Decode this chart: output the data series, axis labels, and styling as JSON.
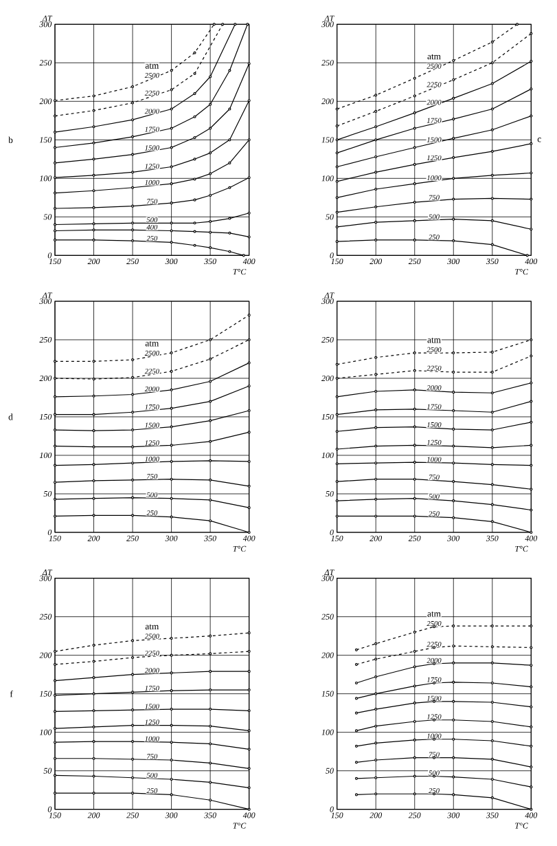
{
  "chart_data": [
    {
      "type": "line",
      "title": "b",
      "legend_title": "atm",
      "xlabel": "T°C",
      "ylabel": "ΔT",
      "xlim": [
        150,
        400
      ],
      "ylim": [
        0,
        300
      ],
      "xticks": [
        150,
        200,
        250,
        300,
        350,
        400
      ],
      "yticks": [
        0,
        50,
        100,
        150,
        200,
        250,
        300
      ],
      "grid": true,
      "marker": "circle",
      "x": [
        150,
        200,
        250,
        300,
        330,
        350,
        375,
        400
      ],
      "series": [
        {
          "name": "2500",
          "color": "#000000",
          "line_style": "dashed",
          "x": [
            150,
            200,
            250,
            300,
            330,
            355
          ],
          "values": [
            201,
            207,
            219,
            240,
            263,
            300
          ]
        },
        {
          "name": "2250",
          "color": "#000000",
          "line_style": "dashed",
          "x": [
            150,
            200,
            250,
            300,
            330,
            366
          ],
          "values": [
            181,
            188,
            198,
            215,
            236,
            300
          ]
        },
        {
          "name": "2000",
          "color": "#000000",
          "line_style": "solid",
          "x": [
            150,
            200,
            250,
            300,
            330,
            350,
            382
          ],
          "values": [
            160,
            167,
            176,
            190,
            210,
            232,
            300
          ]
        },
        {
          "name": "1750",
          "color": "#000000",
          "line_style": "solid",
          "x": [
            150,
            200,
            250,
            300,
            330,
            350,
            375,
            398
          ],
          "values": [
            140,
            146,
            154,
            165,
            180,
            196,
            240,
            300
          ]
        },
        {
          "name": "1500",
          "color": "#000000",
          "line_style": "solid",
          "values": [
            120,
            125,
            131,
            140,
            153,
            165,
            190,
            249
          ]
        },
        {
          "name": "1250",
          "color": "#000000",
          "line_style": "solid",
          "values": [
            101,
            104,
            108,
            115,
            125,
            133,
            150,
            201
          ]
        },
        {
          "name": "1000",
          "color": "#000000",
          "line_style": "solid",
          "values": [
            81,
            84,
            88,
            93,
            99,
            106,
            120,
            150
          ]
        },
        {
          "name": "750",
          "color": "#000000",
          "line_style": "solid",
          "values": [
            61,
            62,
            64,
            68,
            72,
            78,
            88,
            101
          ]
        },
        {
          "name": "500",
          "color": "#000000",
          "line_style": "solid",
          "values": [
            40,
            41,
            42,
            42,
            42,
            44,
            48,
            55
          ]
        },
        {
          "name": "400",
          "color": "#000000",
          "line_style": "solid",
          "values": [
            32,
            33,
            33,
            32,
            31,
            30,
            29,
            24
          ]
        },
        {
          "name": "250",
          "color": "#000000",
          "line_style": "solid",
          "x": [
            150,
            200,
            250,
            300,
            330,
            350,
            375,
            393
          ],
          "values": [
            20,
            20,
            19,
            17,
            13,
            10,
            5,
            0
          ]
        }
      ]
    },
    {
      "type": "line",
      "title": "c",
      "legend_title": "atm",
      "xlabel": "T°C",
      "ylabel": "ΔT",
      "xlim": [
        150,
        400
      ],
      "ylim": [
        0,
        300
      ],
      "xticks": [
        150,
        200,
        250,
        300,
        350,
        400
      ],
      "yticks": [
        0,
        50,
        100,
        150,
        200,
        250,
        300
      ],
      "grid": true,
      "marker": "circle",
      "x": [
        150,
        200,
        250,
        300,
        350,
        400
      ],
      "series": [
        {
          "name": "2500",
          "color": "#000000",
          "line_style": "dashed",
          "x": [
            150,
            200,
            250,
            300,
            350,
            382
          ],
          "values": [
            190,
            208,
            230,
            253,
            277,
            300
          ]
        },
        {
          "name": "2250",
          "color": "#000000",
          "line_style": "dashed",
          "values": [
            168,
            187,
            207,
            228,
            250,
            288
          ]
        },
        {
          "name": "2000",
          "color": "#000000",
          "line_style": "solid",
          "values": [
            150,
            167,
            185,
            204,
            223,
            252
          ]
        },
        {
          "name": "1750",
          "color": "#000000",
          "line_style": "solid",
          "values": [
            133,
            150,
            165,
            177,
            190,
            216
          ]
        },
        {
          "name": "1500",
          "color": "#000000",
          "line_style": "solid",
          "values": [
            115,
            128,
            140,
            152,
            163,
            181
          ]
        },
        {
          "name": "1250",
          "color": "#000000",
          "line_style": "solid",
          "values": [
            96,
            108,
            118,
            127,
            135,
            145
          ]
        },
        {
          "name": "1000",
          "color": "#000000",
          "line_style": "solid",
          "values": [
            75,
            86,
            93,
            100,
            104,
            107
          ]
        },
        {
          "name": "750",
          "color": "#000000",
          "line_style": "solid",
          "values": [
            56,
            63,
            69,
            73,
            74,
            73
          ]
        },
        {
          "name": "500",
          "color": "#000000",
          "line_style": "solid",
          "values": [
            37,
            43,
            45,
            47,
            45,
            34
          ]
        },
        {
          "name": "250",
          "color": "#000000",
          "line_style": "solid",
          "x": [
            150,
            200,
            250,
            300,
            350,
            395
          ],
          "values": [
            18,
            20,
            20,
            19,
            14,
            0
          ]
        }
      ]
    },
    {
      "type": "line",
      "title": "d",
      "legend_title": "atm",
      "xlabel": "T°C",
      "ylabel": "ΔT",
      "xlim": [
        150,
        400
      ],
      "ylim": [
        0,
        300
      ],
      "xticks": [
        150,
        200,
        250,
        300,
        350,
        400
      ],
      "yticks": [
        0,
        50,
        100,
        150,
        200,
        250,
        300
      ],
      "grid": true,
      "marker": "circle",
      "x": [
        150,
        200,
        250,
        300,
        350,
        400
      ],
      "series": [
        {
          "name": "2500",
          "color": "#000000",
          "line_style": "dashed",
          "values": [
            222,
            222,
            224,
            233,
            250,
            282
          ]
        },
        {
          "name": "2250",
          "color": "#000000",
          "line_style": "dashed",
          "values": [
            200,
            199,
            201,
            209,
            225,
            250
          ]
        },
        {
          "name": "2000",
          "color": "#000000",
          "line_style": "solid",
          "values": [
            176,
            177,
            179,
            185,
            196,
            220
          ]
        },
        {
          "name": "1750",
          "color": "#000000",
          "line_style": "solid",
          "values": [
            153,
            153,
            156,
            161,
            170,
            190
          ]
        },
        {
          "name": "1500",
          "color": "#000000",
          "line_style": "solid",
          "values": [
            133,
            132,
            133,
            137,
            145,
            158
          ]
        },
        {
          "name": "1250",
          "color": "#000000",
          "line_style": "solid",
          "values": [
            112,
            111,
            111,
            113,
            118,
            130
          ]
        },
        {
          "name": "1000",
          "color": "#000000",
          "line_style": "solid",
          "values": [
            87,
            88,
            90,
            92,
            93,
            92
          ]
        },
        {
          "name": "750",
          "color": "#000000",
          "line_style": "solid",
          "values": [
            65,
            67,
            68,
            69,
            68,
            60
          ]
        },
        {
          "name": "500",
          "color": "#000000",
          "line_style": "solid",
          "values": [
            43,
            44,
            45,
            44,
            42,
            32
          ]
        },
        {
          "name": "250",
          "color": "#000000",
          "line_style": "solid",
          "values": [
            21,
            22,
            22,
            20,
            15,
            0
          ]
        }
      ]
    },
    {
      "type": "line",
      "legend_title": "atm",
      "xlabel": "T°C",
      "ylabel": "ΔT",
      "xlim": [
        150,
        400
      ],
      "ylim": [
        0,
        300
      ],
      "xticks": [
        150,
        200,
        250,
        300,
        350,
        400
      ],
      "yticks": [
        0,
        50,
        100,
        150,
        200,
        250,
        300
      ],
      "grid": true,
      "marker": "circle",
      "x": [
        150,
        200,
        250,
        300,
        350,
        400
      ],
      "series": [
        {
          "name": "2500",
          "color": "#000000",
          "line_style": "dashed",
          "values": [
            218,
            227,
            233,
            233,
            234,
            250
          ]
        },
        {
          "name": "2250",
          "color": "#000000",
          "line_style": "dashed",
          "values": [
            200,
            205,
            210,
            208,
            208,
            229
          ]
        },
        {
          "name": "2000",
          "color": "#000000",
          "line_style": "solid",
          "values": [
            176,
            183,
            185,
            182,
            181,
            194
          ]
        },
        {
          "name": "1750",
          "color": "#000000",
          "line_style": "solid",
          "values": [
            153,
            159,
            160,
            158,
            156,
            170
          ]
        },
        {
          "name": "1500",
          "color": "#000000",
          "line_style": "solid",
          "values": [
            131,
            136,
            137,
            134,
            133,
            143
          ]
        },
        {
          "name": "1250",
          "color": "#000000",
          "line_style": "solid",
          "values": [
            108,
            112,
            113,
            112,
            110,
            113
          ]
        },
        {
          "name": "1000",
          "color": "#000000",
          "line_style": "solid",
          "values": [
            89,
            90,
            91,
            90,
            88,
            87
          ]
        },
        {
          "name": "750",
          "color": "#000000",
          "line_style": "solid",
          "values": [
            66,
            69,
            69,
            66,
            62,
            56
          ]
        },
        {
          "name": "500",
          "color": "#000000",
          "line_style": "solid",
          "values": [
            41,
            43,
            44,
            41,
            36,
            29
          ]
        },
        {
          "name": "250",
          "color": "#000000",
          "line_style": "solid",
          "values": [
            21,
            21,
            21,
            19,
            14,
            0
          ]
        }
      ]
    },
    {
      "type": "line",
      "title": "f",
      "legend_title": "atm",
      "xlabel": "T°C",
      "ylabel": "ΔT",
      "xlim": [
        150,
        400
      ],
      "ylim": [
        0,
        300
      ],
      "xticks": [
        150,
        200,
        250,
        300,
        350,
        400
      ],
      "yticks": [
        0,
        50,
        100,
        150,
        200,
        250,
        300
      ],
      "grid": true,
      "marker": "circle",
      "x": [
        150,
        200,
        250,
        300,
        350,
        400
      ],
      "series": [
        {
          "name": "2500",
          "color": "#000000",
          "line_style": "dashed",
          "values": [
            205,
            213,
            219,
            222,
            225,
            229
          ]
        },
        {
          "name": "2250",
          "color": "#000000",
          "line_style": "dashed",
          "values": [
            188,
            192,
            197,
            200,
            202,
            205
          ]
        },
        {
          "name": "2000",
          "color": "#000000",
          "line_style": "solid",
          "values": [
            167,
            171,
            175,
            177,
            179,
            179
          ]
        },
        {
          "name": "1750",
          "color": "#000000",
          "line_style": "solid",
          "values": [
            148,
            150,
            152,
            154,
            155,
            155
          ]
        },
        {
          "name": "1500",
          "color": "#000000",
          "line_style": "solid",
          "values": [
            127,
            128,
            129,
            130,
            130,
            128
          ]
        },
        {
          "name": "1250",
          "color": "#000000",
          "line_style": "solid",
          "values": [
            105,
            107,
            109,
            109,
            108,
            102
          ]
        },
        {
          "name": "1000",
          "color": "#000000",
          "line_style": "solid",
          "values": [
            87,
            88,
            88,
            87,
            85,
            78
          ]
        },
        {
          "name": "750",
          "color": "#000000",
          "line_style": "solid",
          "values": [
            66,
            66,
            65,
            64,
            60,
            53
          ]
        },
        {
          "name": "500",
          "color": "#000000",
          "line_style": "solid",
          "values": [
            44,
            43,
            41,
            39,
            35,
            28
          ]
        },
        {
          "name": "250",
          "color": "#000000",
          "line_style": "solid",
          "values": [
            21,
            21,
            21,
            19,
            12,
            0
          ]
        }
      ]
    },
    {
      "type": "line",
      "legend_title": "atm",
      "xlabel": "T°C",
      "ylabel": "ΔT",
      "xlim": [
        150,
        400
      ],
      "ylim": [
        0,
        300
      ],
      "xticks": [
        150,
        200,
        250,
        300,
        350,
        400
      ],
      "yticks": [
        0,
        50,
        100,
        150,
        200,
        250,
        300
      ],
      "grid": true,
      "marker": "circle",
      "x": [
        175,
        200,
        250,
        275,
        300,
        350,
        400
      ],
      "series": [
        {
          "name": "2500",
          "color": "#000000",
          "line_style": "dashed",
          "values": [
            207,
            215,
            230,
            237,
            238,
            238,
            238
          ]
        },
        {
          "name": "2250",
          "color": "#000000",
          "line_style": "dashed",
          "values": [
            188,
            195,
            205,
            210,
            212,
            211,
            210
          ]
        },
        {
          "name": "2000",
          "color": "#000000",
          "line_style": "solid",
          "values": [
            164,
            172,
            185,
            189,
            190,
            190,
            187
          ]
        },
        {
          "name": "1750",
          "color": "#000000",
          "line_style": "solid",
          "values": [
            144,
            150,
            160,
            164,
            165,
            164,
            159
          ]
        },
        {
          "name": "1500",
          "color": "#000000",
          "line_style": "solid",
          "values": [
            125,
            130,
            138,
            140,
            140,
            139,
            133
          ]
        },
        {
          "name": "1250",
          "color": "#000000",
          "line_style": "solid",
          "values": [
            102,
            108,
            114,
            116,
            116,
            114,
            107
          ]
        },
        {
          "name": "1000",
          "color": "#000000",
          "line_style": "solid",
          "values": [
            82,
            86,
            90,
            91,
            91,
            89,
            82
          ]
        },
        {
          "name": "750",
          "color": "#000000",
          "line_style": "solid",
          "values": [
            61,
            64,
            67,
            67,
            67,
            65,
            55
          ]
        },
        {
          "name": "500",
          "color": "#000000",
          "line_style": "solid",
          "values": [
            40,
            41,
            43,
            43,
            42,
            39,
            29
          ]
        },
        {
          "name": "250",
          "color": "#000000",
          "line_style": "solid",
          "values": [
            19,
            20,
            20,
            20,
            19,
            15,
            0
          ]
        }
      ]
    }
  ]
}
